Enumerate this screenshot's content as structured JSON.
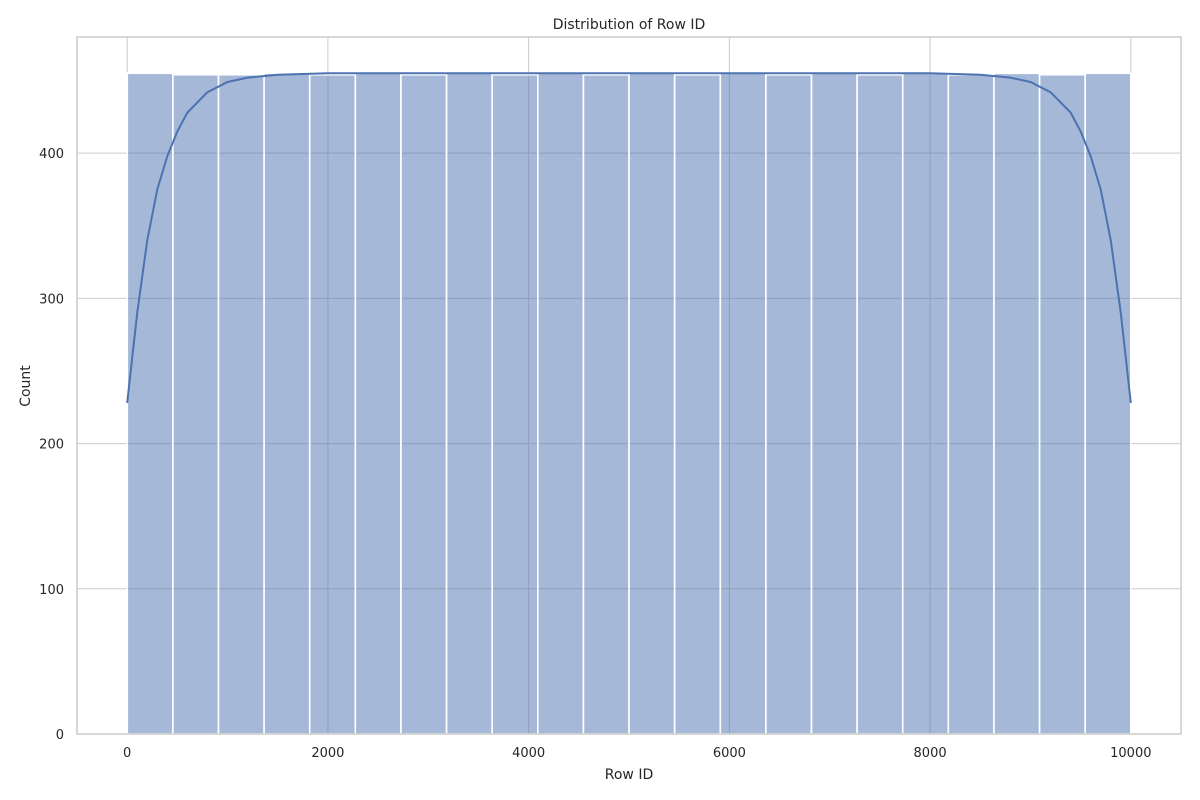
{
  "chart_data": {
    "type": "bar",
    "subtype": "histogram",
    "title": "Distribution of Row ID",
    "xlabel": "Row ID",
    "ylabel": "Count",
    "xlim": [
      -500,
      10500
    ],
    "ylim": [
      0,
      480
    ],
    "xticks": [
      0,
      2000,
      4000,
      6000,
      8000,
      10000
    ],
    "yticks": [
      0,
      100,
      200,
      300,
      400
    ],
    "grid": true,
    "bins": {
      "edges": [
        1,
        455.5,
        910,
        1364.5,
        1819,
        2273.5,
        2728,
        3182.5,
        3637,
        4091.5,
        4546,
        5000.5,
        5455,
        5909.5,
        6364,
        6818.5,
        7273,
        7727.5,
        8182,
        8636.5,
        9091,
        9545.5,
        10000
      ],
      "values": [
        455,
        454,
        454,
        455,
        454,
        455,
        454,
        455,
        454,
        455,
        454,
        455,
        454,
        455,
        454,
        455,
        454,
        455,
        454,
        455,
        454,
        455
      ]
    },
    "kde": {
      "x": [
        0,
        100,
        200,
        300,
        400,
        500,
        600,
        800,
        1000,
        1200,
        1500,
        2000,
        3000,
        5000,
        7000,
        8000,
        8500,
        8800,
        9000,
        9200,
        9400,
        9500,
        9600,
        9700,
        9800,
        9900,
        10000
      ],
      "y": [
        228,
        290,
        340,
        375,
        398,
        415,
        428,
        442,
        449,
        452,
        454,
        455,
        455,
        455,
        455,
        455,
        454,
        452,
        449,
        442,
        428,
        415,
        398,
        375,
        340,
        290,
        228
      ]
    },
    "colors": {
      "bar": "#4c72b0",
      "line": "#4c72b0",
      "grid": "#cccccc"
    }
  }
}
